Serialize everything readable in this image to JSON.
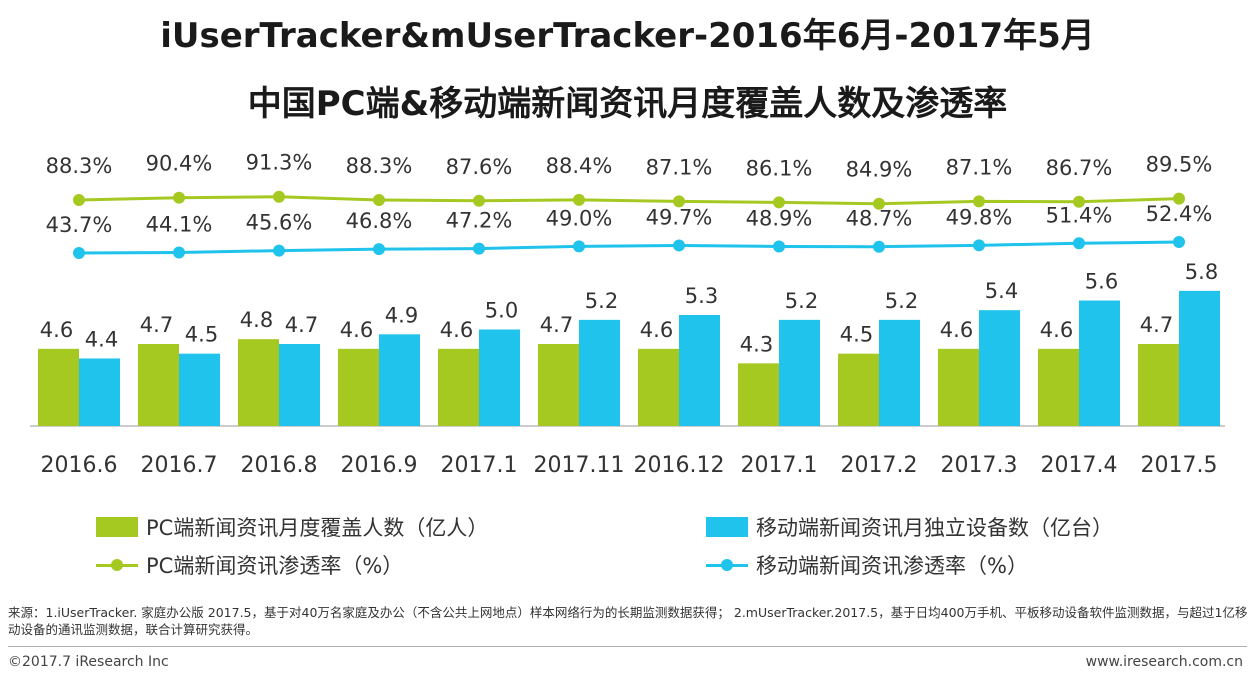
{
  "title_line1": "iUserTracker&mUserTracker-2016年6月-2017年5月",
  "title_line2": "中国PC端&移动端新闻资讯月度覆盖人数及渗透率",
  "colors": {
    "pc": "#a6c922",
    "mobile": "#1fc3eb",
    "pc_line": "#a6c922",
    "mobile_line": "#1fc3eb"
  },
  "chart_data": {
    "type": "bar",
    "categories": [
      "2016.6",
      "2016.7",
      "2016.8",
      "2016.9",
      "2017.1",
      "2017.11",
      "2016.12",
      "2017.1",
      "2017.2",
      "2017.3",
      "2017.4",
      "2017.5"
    ],
    "series": [
      {
        "name": "PC端新闻资讯月度覆盖人数（亿人）",
        "kind": "bar",
        "values": [
          4.6,
          4.7,
          4.8,
          4.6,
          4.6,
          4.7,
          4.6,
          4.3,
          4.5,
          4.6,
          4.6,
          4.7
        ],
        "labels": [
          "4.6",
          "4.7",
          "4.8",
          "4.6",
          "4.6",
          "4.7",
          "4.6",
          "4.3",
          "4.5",
          "4.6",
          "4.6",
          "4.7"
        ]
      },
      {
        "name": "移动端新闻资讯月独立设备数（亿台）",
        "kind": "bar",
        "values": [
          4.4,
          4.5,
          4.7,
          4.9,
          5.0,
          5.2,
          5.3,
          5.2,
          5.2,
          5.4,
          5.6,
          5.8
        ],
        "labels": [
          "4.4",
          "4.5",
          "4.7",
          "4.9",
          "5.0",
          "5.2",
          "5.3",
          "5.2",
          "5.2",
          "5.4",
          "5.6",
          "5.8"
        ]
      },
      {
        "name": "PC端新闻资讯渗透率（%）",
        "kind": "line",
        "values": [
          88.3,
          90.4,
          91.3,
          88.3,
          87.6,
          88.4,
          87.1,
          86.1,
          84.9,
          87.1,
          86.7,
          89.5
        ],
        "labels": [
          "88.3%",
          "90.4%",
          "91.3%",
          "88.3%",
          "87.6%",
          "88.4%",
          "87.1%",
          "86.1%",
          "84.9%",
          "87.1%",
          "86.7%",
          "89.5%"
        ]
      },
      {
        "name": "移动端新闻资讯渗透率（%）",
        "kind": "line",
        "values": [
          43.7,
          44.1,
          45.6,
          46.8,
          47.2,
          49.0,
          49.7,
          48.9,
          48.7,
          49.8,
          51.4,
          52.4
        ],
        "labels": [
          "43.7%",
          "44.1%",
          "45.6%",
          "46.8%",
          "47.2%",
          "49.0%",
          "49.7%",
          "48.9%",
          "48.7%",
          "49.8%",
          "51.4%",
          "52.4%"
        ]
      }
    ],
    "bar_ylim": [
      0,
      10
    ],
    "line_ylim": [
      0,
      100
    ],
    "grid": false,
    "legend_position": "bottom"
  },
  "legend": {
    "pc_bar": "PC端新闻资讯月度覆盖人数（亿人）",
    "mobile_bar": "移动端新闻资讯月独立设备数（亿台）",
    "pc_line": "PC端新闻资讯渗透率（%）",
    "mobile_line": "移动端新闻资讯渗透率（%）"
  },
  "source_text": "来源：1.iUserTracker. 家庭办公版 2017.5，基于对40万名家庭及办公（不含公共上网地点）样本网络行为的长期监测数据获得； 2.mUserTracker.2017.5，基于日均400万手机、平板移动设备软件监测数据，与超过1亿移动设备的通讯监测数据，联合计算研究获得。",
  "copyright": "©2017.7 iResearch Inc",
  "website": "www.iresearch.com.cn"
}
